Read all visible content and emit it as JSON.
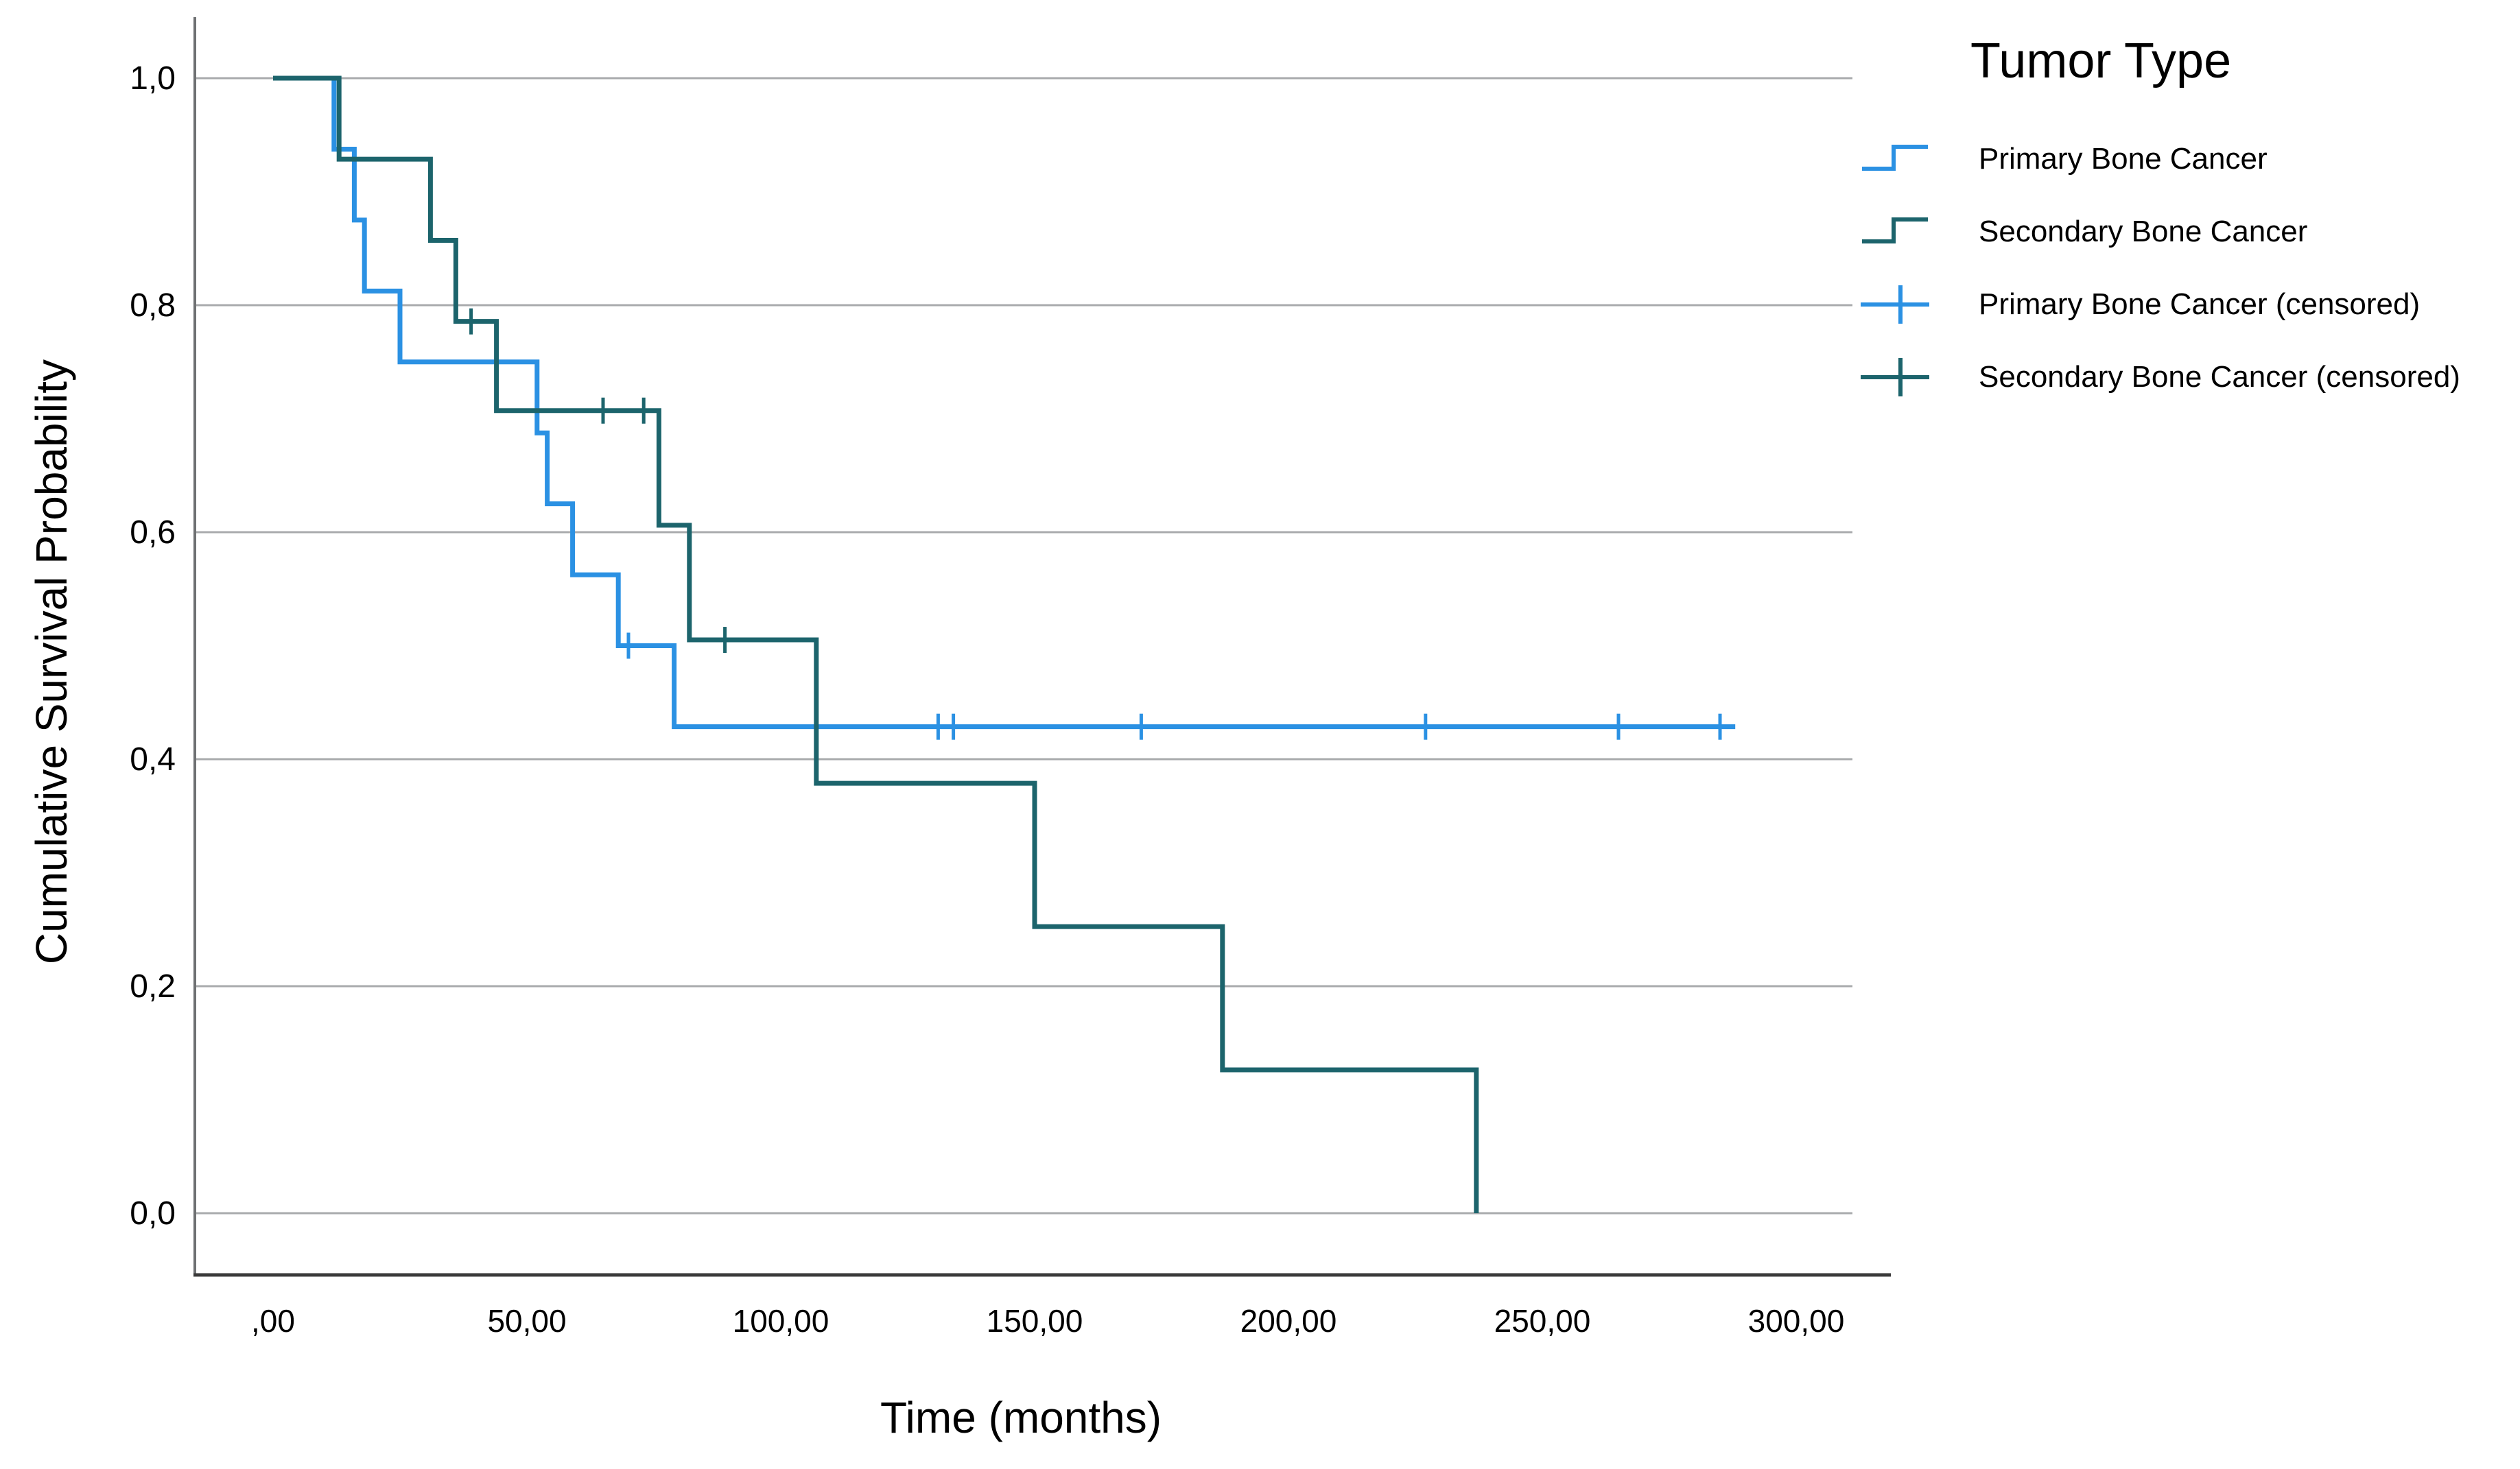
{
  "axes": {
    "y_title": "Cumulative Survival Probability",
    "x_title": "Time (months)",
    "y_ticks": [
      {
        "label": "1,0",
        "value": 1.0
      },
      {
        "label": "0,8",
        "value": 0.8
      },
      {
        "label": "0,6",
        "value": 0.6
      },
      {
        "label": "0,4",
        "value": 0.4
      },
      {
        "label": "0,2",
        "value": 0.2
      },
      {
        "label": "0,0",
        "value": 0.0
      }
    ],
    "x_ticks": [
      {
        "label": ",00",
        "value": 0
      },
      {
        "label": "50,00",
        "value": 50
      },
      {
        "label": "100,00",
        "value": 100
      },
      {
        "label": "150,00",
        "value": 150
      },
      {
        "label": "200,00",
        "value": 200
      },
      {
        "label": "250,00",
        "value": 250
      },
      {
        "label": "300,00",
        "value": 300
      }
    ],
    "grid_color": "#a9abad",
    "y_axis_color": "#6e7072",
    "x_axis_color": "#3a3a3a",
    "text_color": "#000000"
  },
  "legend": {
    "title": "Tumor Type",
    "entries": [
      {
        "label": "Primary Bone Cancer",
        "series": 0,
        "symbol": "step"
      },
      {
        "label": "Secondary Bone Cancer",
        "series": 1,
        "symbol": "step"
      },
      {
        "label": "Primary Bone Cancer (censored)",
        "series": 0,
        "symbol": "censor"
      },
      {
        "label": "Secondary Bone Cancer (censored)",
        "series": 1,
        "symbol": "censor"
      }
    ]
  },
  "chart_data": {
    "type": "line",
    "subtype": "kaplan-meier-step",
    "title": "",
    "xlabel": "Time (months)",
    "ylabel": "Cumulative Survival Probability",
    "xlim": [
      0,
      318
    ],
    "ylim": [
      0.0,
      1.0
    ],
    "grid": "horizontal-only",
    "legend_position": "top-right-outside",
    "series": [
      {
        "name": "Primary Bone Cancer",
        "color": "#2b91e3",
        "steps": [
          [
            0,
            1.0
          ],
          [
            12,
            0.9375
          ],
          [
            16,
            0.875
          ],
          [
            18,
            0.8125
          ],
          [
            25,
            0.75
          ],
          [
            52,
            0.6875
          ],
          [
            54,
            0.625
          ],
          [
            59,
            0.5625
          ],
          [
            68,
            0.5
          ],
          [
            79,
            0.4286
          ]
        ],
        "end_time": 288,
        "censored": [
          [
            70,
            0.5
          ],
          [
            131,
            0.4286
          ],
          [
            134,
            0.4286
          ],
          [
            171,
            0.4286
          ],
          [
            227,
            0.4286
          ],
          [
            265,
            0.4286
          ],
          [
            285,
            0.4286
          ]
        ]
      },
      {
        "name": "Secondary Bone Cancer",
        "color": "#1c646c",
        "steps": [
          [
            0,
            1.0
          ],
          [
            13,
            0.9286
          ],
          [
            31,
            0.8571
          ],
          [
            36,
            0.7857
          ],
          [
            44,
            0.7071
          ],
          [
            76,
            0.6061
          ],
          [
            82,
            0.5051
          ],
          [
            107,
            0.3788
          ],
          [
            150,
            0.2525
          ],
          [
            187,
            0.1263
          ],
          [
            237,
            0.0
          ]
        ],
        "end_time": 237,
        "censored": [
          [
            39,
            0.7857
          ],
          [
            65,
            0.7071
          ],
          [
            73,
            0.7071
          ],
          [
            89,
            0.5051
          ]
        ]
      }
    ]
  }
}
